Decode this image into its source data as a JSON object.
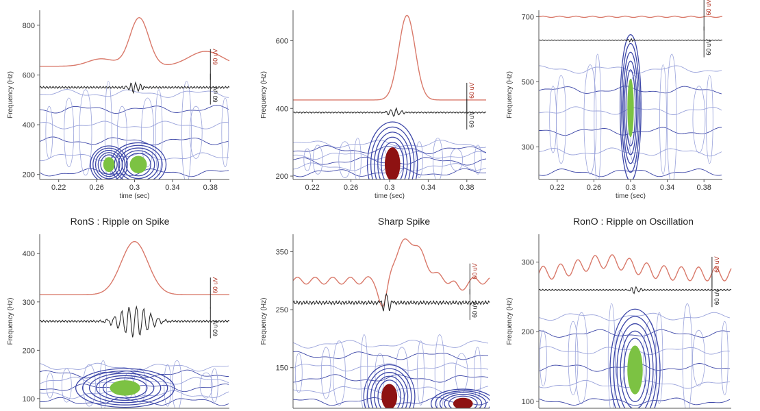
{
  "figure": {
    "colors": {
      "raw_trace": "#d9796a",
      "filtered_trace": "#2b2b2b",
      "contour": "#3d47a8",
      "contour_light": "#9aa3db",
      "blob_green": "#7cc243",
      "blob_red": "#8e1212",
      "axis": "#555555"
    }
  },
  "chart_data": [
    {
      "id": "top-left",
      "type": "time-frequency",
      "title": "",
      "xlabel": "time (sec)",
      "ylabel": "Frequency (Hz)",
      "xlim": [
        0.2,
        0.4
      ],
      "ylim": [
        180,
        860
      ],
      "xticks": [
        0.22,
        0.26,
        0.3,
        0.34,
        0.38
      ],
      "xticklabels": [
        "0.22",
        "0.26",
        "0.3",
        "0.34",
        "0.38"
      ],
      "yticks": [
        200,
        400,
        600,
        800
      ],
      "yticklabels": [
        "200",
        "400",
        "600",
        "800"
      ],
      "traces": {
        "raw": {
          "baseline": 635,
          "amp": 0,
          "spikes": [
            {
              "t": 0.265,
              "a": 30,
              "w": 0.02
            },
            {
              "t": 0.305,
              "a": 195,
              "w": 0.014
            },
            {
              "t": 0.375,
              "a": 60,
              "w": 0.025
            }
          ]
        },
        "filtered": {
          "baseline": 550,
          "amp": 4,
          "osc": {
            "t": 0.3,
            "a": 22,
            "w": 0.008,
            "freq": 200
          }
        }
      },
      "contour_top": 600,
      "blobs": [
        {
          "t": 0.304,
          "f": 240,
          "st": 0.009,
          "sf": 35,
          "color": "green"
        },
        {
          "t": 0.273,
          "f": 240,
          "st": 0.006,
          "sf": 30,
          "color": "green"
        }
      ],
      "scale_labels": [
        "60 uV",
        "60 uV"
      ],
      "scale_t": 0.38
    },
    {
      "id": "top-middle",
      "type": "time-frequency",
      "title": "",
      "xlabel": "time (sec)",
      "ylabel": "Frequency (Hz)",
      "xlim": [
        0.2,
        0.4
      ],
      "ylim": [
        190,
        690
      ],
      "xticks": [
        0.22,
        0.26,
        0.3,
        0.34,
        0.38
      ],
      "xticklabels": [
        "0.22",
        "0.26",
        "0.3",
        "0.34",
        "0.38"
      ],
      "yticks": [
        200,
        400,
        600
      ],
      "yticklabels": [
        "200",
        "400",
        "600"
      ],
      "traces": {
        "raw": {
          "baseline": 425,
          "amp": 0,
          "spikes": [
            {
              "t": 0.318,
              "a": 250,
              "w": 0.012
            }
          ]
        },
        "filtered": {
          "baseline": 388,
          "amp": 2,
          "osc": {
            "t": 0.305,
            "a": 12,
            "w": 0.008,
            "freq": 180
          }
        }
      },
      "contour_top": 320,
      "blobs": [
        {
          "t": 0.303,
          "f": 235,
          "st": 0.008,
          "sf": 50,
          "color": "red"
        }
      ],
      "scale_labels": [
        "60 uV",
        "60 uV"
      ],
      "scale_t": 0.38
    },
    {
      "id": "top-right",
      "type": "time-frequency",
      "title": "",
      "xlabel": "time (sec)",
      "ylabel": "Frequency (Hz)",
      "xlim": [
        0.2,
        0.4
      ],
      "ylim": [
        200,
        720
      ],
      "xticks": [
        0.22,
        0.26,
        0.3,
        0.34,
        0.38
      ],
      "xticklabels": [
        "0.22",
        "0.26",
        "0.3",
        "0.34",
        "0.38"
      ],
      "yticks": [
        300,
        500,
        700
      ],
      "yticklabels": [
        "300",
        "500",
        "700"
      ],
      "traces": {
        "raw": {
          "baseline": 700,
          "amp": 2,
          "spikes": []
        },
        "filtered": {
          "baseline": 628,
          "amp": 1,
          "osc": {
            "t": 0.3,
            "a": 5,
            "w": 0.004,
            "freq": 300
          }
        }
      },
      "contour_top": 610,
      "blobs": [
        {
          "t": 0.3,
          "f": 420,
          "st": 0.0035,
          "sf": 90,
          "color": "green"
        }
      ],
      "scale_labels": [
        "60 uV",
        "60 uV"
      ],
      "scale_t": 0.38
    },
    {
      "id": "bottom-left",
      "type": "time-frequency",
      "title": "RonS : Ripple on Spike",
      "xlabel": "",
      "ylabel": "Frequency (Hz)",
      "xlim": [
        0.2,
        0.4
      ],
      "ylim": [
        80,
        440
      ],
      "xticks": [],
      "xticklabels": [],
      "yticks": [
        100,
        200,
        300,
        400
      ],
      "yticklabels": [
        "100",
        "200",
        "300",
        "400"
      ],
      "traces": {
        "raw": {
          "baseline": 315,
          "amp": 0,
          "spikes": [
            {
              "t": 0.3,
              "a": 110,
              "w": 0.02
            }
          ]
        },
        "filtered": {
          "baseline": 260,
          "amp": 2,
          "osc": {
            "t": 0.3,
            "a": 32,
            "w": 0.02,
            "freq": 130
          }
        }
      },
      "contour_top": 185,
      "blobs": [
        {
          "t": 0.29,
          "f": 122,
          "st": 0.016,
          "sf": 16,
          "color": "green"
        }
      ],
      "scale_labels": [
        "60 uV",
        "60 uV"
      ],
      "scale_t": 0.38
    },
    {
      "id": "bottom-middle",
      "type": "time-frequency",
      "title": "Sharp Spike",
      "xlabel": "",
      "ylabel": "Frequency (Hz)",
      "xlim": [
        0.2,
        0.4
      ],
      "ylim": [
        80,
        380
      ],
      "xticks": [],
      "xticklabels": [],
      "yticks": [
        150,
        250,
        350
      ],
      "yticklabels": [
        "150",
        "250",
        "350"
      ],
      "traces": {
        "raw": {
          "baseline": 300,
          "amp": 6,
          "spikes": [
            {
              "t": 0.292,
              "a": -60,
              "w": 0.006
            },
            {
              "t": 0.318,
              "a": 70,
              "w": 0.02
            },
            {
              "t": 0.37,
              "a": -15,
              "w": 0.006
            }
          ]
        },
        "filtered": {
          "baseline": 262,
          "amp": 3,
          "osc": {
            "t": 0.295,
            "a": 18,
            "w": 0.005,
            "freq": 150
          }
        }
      },
      "contour_top": 215,
      "blobs": [
        {
          "t": 0.298,
          "f": 100,
          "st": 0.008,
          "sf": 22,
          "color": "red"
        },
        {
          "t": 0.373,
          "f": 88,
          "st": 0.01,
          "sf": 10,
          "color": "red"
        }
      ],
      "scale_labels": [
        "60 uV",
        "60 uV"
      ],
      "scale_t": 0.38
    },
    {
      "id": "bottom-right",
      "type": "time-frequency",
      "title": "RonO :  Ripple on Oscillation",
      "xlabel": "",
      "ylabel": "Frequency (Hz)",
      "xlim": [
        0.2,
        0.4
      ],
      "ylim": [
        90,
        340
      ],
      "xticks": [],
      "xticklabels": [],
      "yticks": [
        100,
        200,
        300
      ],
      "yticklabels": [
        "100",
        "200",
        "300"
      ],
      "traces": {
        "raw": {
          "baseline": 283,
          "amp": 10,
          "spikes": [
            {
              "t": 0.27,
              "a": 18,
              "w": 0.04
            }
          ]
        },
        "filtered": {
          "baseline": 260,
          "amp": 1,
          "osc": {
            "t": 0.3,
            "a": 5,
            "w": 0.006,
            "freq": 200
          }
        }
      },
      "contour_top": 250,
      "blobs": [
        {
          "t": 0.3,
          "f": 145,
          "st": 0.008,
          "sf": 35,
          "color": "green"
        }
      ],
      "scale_labels": [
        "60 uV",
        "60 uV"
      ],
      "scale_t": 0.38
    }
  ]
}
